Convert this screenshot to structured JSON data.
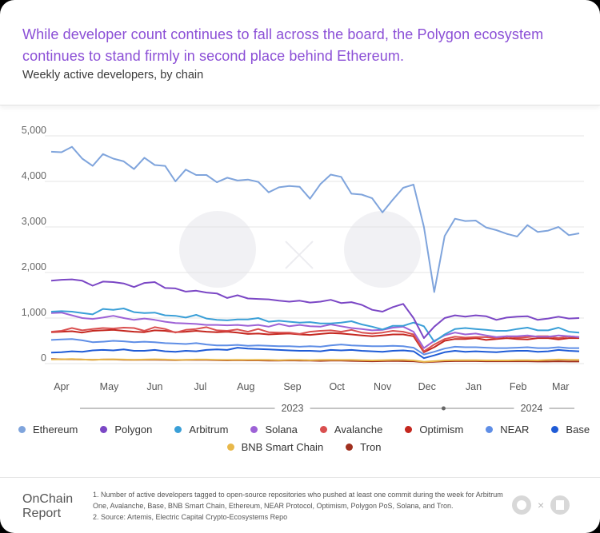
{
  "header": {
    "title": "While developer count continues to fall across the board, the Polygon ecosystem continues to stand firmly in second place behind Ethereum.",
    "subtitle": "Weekly active developers, by chain"
  },
  "chart_data": {
    "type": "line",
    "title": "Weekly active developers, by chain",
    "xlabel": "",
    "ylabel": "",
    "ylim": [
      0,
      5000
    ],
    "yticks": [
      0,
      1000,
      2000,
      3000,
      4000,
      5000
    ],
    "ytick_labels": [
      "0",
      "1,000",
      "2,000",
      "3,000",
      "4,000",
      "5,000"
    ],
    "x_week_count": 52,
    "month_labels": [
      {
        "label": "Apr",
        "week": 1
      },
      {
        "label": "May",
        "week": 5.6
      },
      {
        "label": "Jun",
        "week": 10
      },
      {
        "label": "Jul",
        "week": 14.4
      },
      {
        "label": "Aug",
        "week": 18.8
      },
      {
        "label": "Sep",
        "week": 23.3
      },
      {
        "label": "Oct",
        "week": 27.6
      },
      {
        "label": "Nov",
        "week": 32
      },
      {
        "label": "Dec",
        "week": 36.3
      },
      {
        "label": "Jan",
        "week": 40.8
      },
      {
        "label": "Feb",
        "week": 45.1
      },
      {
        "label": "Mar",
        "week": 49.2
      }
    ],
    "year_labels": [
      {
        "label": "2023",
        "week": 23.3
      },
      {
        "label": "2024",
        "week": 46.4
      }
    ],
    "year_divider_week": 37.9,
    "grid": true,
    "legend_position": "bottom",
    "series": [
      {
        "name": "Ethereum",
        "color": "#7fa4dc",
        "values": [
          4650,
          4640,
          4760,
          4500,
          4340,
          4600,
          4500,
          4440,
          4270,
          4520,
          4360,
          4340,
          4000,
          4260,
          4140,
          4140,
          3980,
          4080,
          4020,
          4040,
          3990,
          3760,
          3870,
          3900,
          3880,
          3620,
          3940,
          4150,
          4100,
          3730,
          3710,
          3630,
          3320,
          3600,
          3860,
          3930,
          3000,
          1570,
          2800,
          3180,
          3130,
          3140,
          2990,
          2930,
          2850,
          2790,
          3040,
          2890,
          2920,
          3000,
          2820,
          2860
        ]
      },
      {
        "name": "Polygon",
        "color": "#7b47c5",
        "values": [
          1820,
          1840,
          1850,
          1820,
          1710,
          1800,
          1790,
          1760,
          1680,
          1770,
          1790,
          1660,
          1650,
          1580,
          1600,
          1560,
          1540,
          1440,
          1500,
          1430,
          1420,
          1410,
          1380,
          1360,
          1380,
          1340,
          1360,
          1400,
          1330,
          1350,
          1290,
          1180,
          1140,
          1240,
          1310,
          1000,
          560,
          810,
          1000,
          1060,
          1030,
          1060,
          1040,
          960,
          1010,
          1030,
          1040,
          960,
          990,
          1030,
          990,
          1000
        ]
      },
      {
        "name": "Arbitrum",
        "color": "#3a9fd7",
        "values": [
          1140,
          1150,
          1140,
          1110,
          1080,
          1200,
          1180,
          1210,
          1130,
          1110,
          1120,
          1060,
          1050,
          1010,
          1070,
          990,
          960,
          950,
          970,
          970,
          1000,
          920,
          940,
          920,
          900,
          910,
          880,
          880,
          900,
          930,
          860,
          810,
          750,
          830,
          830,
          900,
          820,
          480,
          640,
          760,
          780,
          760,
          740,
          720,
          720,
          760,
          790,
          730,
          730,
          790,
          700,
          680
        ]
      },
      {
        "name": "Solana",
        "color": "#9d62d6",
        "values": [
          1110,
          1120,
          1060,
          1000,
          980,
          1010,
          1050,
          1000,
          960,
          990,
          960,
          920,
          890,
          880,
          870,
          850,
          850,
          840,
          850,
          830,
          850,
          810,
          870,
          820,
          850,
          820,
          810,
          860,
          820,
          780,
          760,
          730,
          740,
          790,
          810,
          700,
          340,
          500,
          620,
          680,
          640,
          660,
          620,
          580,
          600,
          600,
          620,
          590,
          590,
          620,
          600,
          580
        ]
      },
      {
        "name": "Avalanche",
        "color": "#d94f4f",
        "values": [
          700,
          720,
          780,
          730,
          760,
          780,
          770,
          790,
          780,
          720,
          800,
          760,
          680,
          740,
          760,
          800,
          730,
          720,
          750,
          700,
          760,
          690,
          680,
          680,
          650,
          700,
          720,
          730,
          700,
          740,
          680,
          660,
          680,
          720,
          700,
          640,
          270,
          420,
          540,
          590,
          570,
          580,
          580,
          560,
          600,
          570,
          580,
          600,
          600,
          560,
          600,
          580
        ]
      },
      {
        "name": "Optimism",
        "color": "#c4271f",
        "values": [
          690,
          700,
          710,
          680,
          720,
          730,
          740,
          720,
          700,
          690,
          730,
          720,
          690,
          700,
          720,
          700,
          690,
          700,
          680,
          650,
          660,
          640,
          650,
          660,
          640,
          630,
          650,
          670,
          660,
          640,
          620,
          600,
          620,
          640,
          640,
          600,
          250,
          360,
          500,
          540,
          540,
          560,
          520,
          540,
          560,
          540,
          530,
          560,
          560,
          530,
          560,
          560
        ]
      },
      {
        "name": "NEAR",
        "color": "#5f8ee6",
        "values": [
          520,
          530,
          540,
          510,
          470,
          480,
          500,
          490,
          470,
          480,
          470,
          450,
          440,
          430,
          450,
          420,
          400,
          400,
          410,
          390,
          400,
          390,
          380,
          380,
          370,
          380,
          370,
          400,
          420,
          400,
          390,
          380,
          380,
          390,
          380,
          350,
          200,
          260,
          330,
          370,
          360,
          360,
          350,
          340,
          340,
          350,
          360,
          340,
          340,
          360,
          340,
          340
        ]
      },
      {
        "name": "Base",
        "color": "#1f5bd6",
        "values": [
          240,
          250,
          270,
          260,
          290,
          300,
          290,
          310,
          280,
          280,
          300,
          270,
          260,
          280,
          270,
          300,
          310,
          300,
          350,
          330,
          320,
          310,
          300,
          290,
          280,
          280,
          270,
          300,
          290,
          300,
          280,
          270,
          260,
          280,
          290,
          270,
          120,
          180,
          250,
          280,
          260,
          270,
          260,
          250,
          270,
          280,
          280,
          260,
          270,
          300,
          280,
          270
        ]
      },
      {
        "name": "BNB Smart Chain",
        "color": "#e8b84a",
        "values": [
          90,
          95,
          100,
          90,
          85,
          90,
          95,
          90,
          85,
          90,
          95,
          90,
          80,
          85,
          90,
          90,
          85,
          80,
          85,
          80,
          85,
          80,
          75,
          80,
          80,
          75,
          80,
          85,
          80,
          80,
          75,
          70,
          75,
          80,
          80,
          70,
          40,
          55,
          70,
          75,
          75,
          75,
          70,
          70,
          70,
          75,
          75,
          70,
          80,
          90,
          85,
          80
        ]
      },
      {
        "name": "Tron",
        "color": "#a0301f",
        "values": [
          100,
          95,
          95,
          90,
          85,
          90,
          90,
          85,
          80,
          85,
          85,
          80,
          75,
          80,
          80,
          80,
          75,
          70,
          75,
          70,
          70,
          65,
          65,
          70,
          65,
          65,
          60,
          65,
          65,
          60,
          55,
          50,
          55,
          60,
          55,
          50,
          30,
          40,
          50,
          55,
          55,
          55,
          50,
          50,
          50,
          50,
          50,
          45,
          45,
          50,
          45,
          45
        ]
      }
    ]
  },
  "footer": {
    "brand": "OnChain Report",
    "note1": "1. Number of active developers tagged to open-source repositories who pushed at least one commit during the week for Arbitrum One, Avalanche, Base, BNB Smart Chain, Ethereum, NEAR Protocol, Optimism, Polygon PoS, Solana, and Tron.",
    "note2": "2. Source: Artemis, Electric Capital Crypto-Ecosystems Repo"
  }
}
